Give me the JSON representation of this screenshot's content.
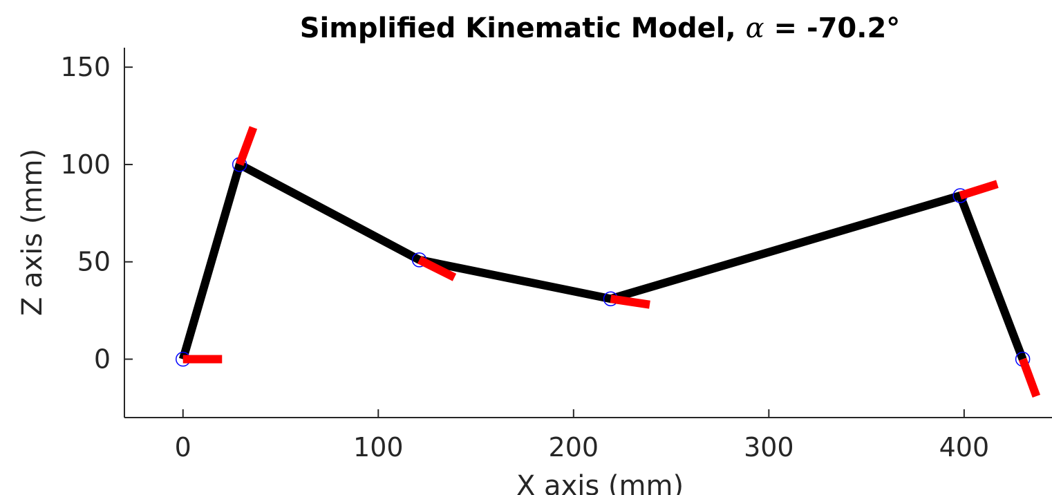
{
  "chart_data": {
    "type": "line",
    "title_prefix": "Simplified Kinematic Model, ",
    "title_symbol": "α",
    "title_suffix": " = -70.2°",
    "xlabel": "X axis (mm)",
    "ylabel": "Z axis (mm)",
    "xlim": [
      -30,
      445
    ],
    "ylim": [
      -30,
      160
    ],
    "xticks": [
      0,
      100,
      200,
      300,
      400
    ],
    "yticks": [
      0,
      50,
      100,
      150
    ],
    "grid": false,
    "legend": "none",
    "links": {
      "x": [
        0,
        29,
        121,
        219,
        398,
        430
      ],
      "z": [
        0,
        100,
        51,
        31,
        84,
        0
      ],
      "color": "#000000"
    },
    "joints": {
      "x": [
        0,
        29,
        121,
        219,
        398,
        430
      ],
      "z": [
        0,
        100,
        51,
        31,
        84,
        0
      ],
      "color": "#0000ff",
      "marker": "circle"
    },
    "orientation_markers": {
      "color": "#ff0000",
      "segments": [
        {
          "x": [
            0,
            20
          ],
          "z": [
            0,
            0
          ]
        },
        {
          "x": [
            29,
            36
          ],
          "z": [
            100,
            119
          ]
        },
        {
          "x": [
            121,
            139
          ],
          "z": [
            51,
            42
          ]
        },
        {
          "x": [
            219,
            239
          ],
          "z": [
            31,
            28
          ]
        },
        {
          "x": [
            398,
            417
          ],
          "z": [
            84,
            90
          ]
        },
        {
          "x": [
            430,
            437
          ],
          "z": [
            0,
            -19
          ]
        }
      ]
    }
  }
}
